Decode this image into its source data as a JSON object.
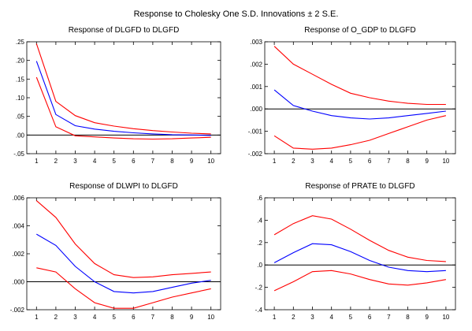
{
  "figure": {
    "title": "Response to Cholesky One S.D. Innovations ± 2 S.E."
  },
  "colors": {
    "response": "#0000ff",
    "band": "#ff0000",
    "zero_line": "#000000",
    "frame": "#000000",
    "background": "#ffffff"
  },
  "chart_data": [
    {
      "type": "line",
      "title": "Response of DLGFD to DLGFD",
      "x": [
        1,
        2,
        3,
        4,
        5,
        6,
        7,
        8,
        9,
        10
      ],
      "ylim": [
        -0.05,
        0.25
      ],
      "yticks": [
        ".25",
        ".20",
        ".15",
        ".10",
        ".05",
        ".00",
        "-.05"
      ],
      "ytick_values": [
        0.25,
        0.2,
        0.15,
        0.1,
        0.05,
        0.0,
        -0.05
      ],
      "xticks": [
        "1",
        "2",
        "3",
        "4",
        "5",
        "6",
        "7",
        "8",
        "9",
        "10"
      ],
      "zero_line": true,
      "legend": false,
      "series": [
        {
          "role": "upper",
          "values": [
            0.245,
            0.09,
            0.052,
            0.033,
            0.024,
            0.017,
            0.012,
            0.008,
            0.005,
            0.003
          ]
        },
        {
          "role": "response",
          "values": [
            0.198,
            0.055,
            0.025,
            0.016,
            0.01,
            0.006,
            0.003,
            0.001,
            0.0,
            -0.001
          ]
        },
        {
          "role": "lower",
          "values": [
            0.155,
            0.022,
            -0.002,
            -0.005,
            -0.008,
            -0.01,
            -0.011,
            -0.01,
            -0.008,
            -0.006
          ]
        }
      ]
    },
    {
      "type": "line",
      "title": "Response of O_GDP to DLGFD",
      "x": [
        1,
        2,
        3,
        4,
        5,
        6,
        7,
        8,
        9,
        10
      ],
      "ylim": [
        -0.002,
        0.003
      ],
      "yticks": [
        ".003",
        ".002",
        ".001",
        ".000",
        "-.001",
        "-.002"
      ],
      "ytick_values": [
        0.003,
        0.002,
        0.001,
        0.0,
        -0.001,
        -0.002
      ],
      "xticks": [
        "1",
        "2",
        "3",
        "4",
        "5",
        "6",
        "7",
        "8",
        "9",
        "10"
      ],
      "zero_line": true,
      "legend": false,
      "series": [
        {
          "role": "upper",
          "values": [
            0.0028,
            0.002,
            0.00155,
            0.0011,
            0.0007,
            0.0005,
            0.00035,
            0.00025,
            0.0002,
            0.0002
          ]
        },
        {
          "role": "response",
          "values": [
            0.00085,
            0.00015,
            -0.0001,
            -0.0003,
            -0.0004,
            -0.00045,
            -0.0004,
            -0.0003,
            -0.0002,
            -0.0001
          ]
        },
        {
          "role": "lower",
          "values": [
            -0.0012,
            -0.00175,
            -0.0018,
            -0.00175,
            -0.0016,
            -0.0014,
            -0.0011,
            -0.0008,
            -0.0005,
            -0.0003
          ]
        }
      ]
    },
    {
      "type": "line",
      "title": "Response of DLWPI to DLGFD",
      "x": [
        1,
        2,
        3,
        4,
        5,
        6,
        7,
        8,
        9,
        10
      ],
      "ylim": [
        -0.002,
        0.006
      ],
      "yticks": [
        ".006",
        ".004",
        ".002",
        ".000",
        "-.002"
      ],
      "ytick_values": [
        0.006,
        0.004,
        0.002,
        0.0,
        -0.002
      ],
      "xticks": [
        "1",
        "2",
        "3",
        "4",
        "5",
        "6",
        "7",
        "8",
        "9",
        "10"
      ],
      "zero_line": true,
      "legend": false,
      "series": [
        {
          "role": "upper",
          "values": [
            0.0058,
            0.0046,
            0.0027,
            0.0013,
            0.0005,
            0.0003,
            0.00035,
            0.0005,
            0.0006,
            0.0007
          ]
        },
        {
          "role": "response",
          "values": [
            0.0034,
            0.0026,
            0.0011,
            0.0,
            -0.0007,
            -0.0008,
            -0.0007,
            -0.0004,
            -0.0001,
            0.0001
          ]
        },
        {
          "role": "lower",
          "values": [
            0.001,
            0.0007,
            -0.0005,
            -0.0015,
            -0.0019,
            -0.0019,
            -0.0015,
            -0.0011,
            -0.0008,
            -0.0005
          ]
        }
      ]
    },
    {
      "type": "line",
      "title": "Response of PRATE to DLGFD",
      "x": [
        1,
        2,
        3,
        4,
        5,
        6,
        7,
        8,
        9,
        10
      ],
      "ylim": [
        -0.4,
        0.6
      ],
      "yticks": [
        ".6",
        ".4",
        ".2",
        ".0",
        "-.2",
        "-.4"
      ],
      "ytick_values": [
        0.6,
        0.4,
        0.2,
        0.0,
        -0.2,
        -0.4
      ],
      "xticks": [
        "1",
        "2",
        "3",
        "4",
        "5",
        "6",
        "7",
        "8",
        "9",
        "10"
      ],
      "zero_line": true,
      "legend": false,
      "series": [
        {
          "role": "upper",
          "values": [
            0.27,
            0.37,
            0.44,
            0.41,
            0.32,
            0.22,
            0.13,
            0.07,
            0.04,
            0.03
          ]
        },
        {
          "role": "response",
          "values": [
            0.02,
            0.11,
            0.19,
            0.18,
            0.12,
            0.04,
            -0.02,
            -0.05,
            -0.06,
            -0.05
          ]
        },
        {
          "role": "lower",
          "values": [
            -0.23,
            -0.15,
            -0.06,
            -0.05,
            -0.08,
            -0.13,
            -0.17,
            -0.18,
            -0.16,
            -0.13
          ]
        }
      ]
    }
  ]
}
